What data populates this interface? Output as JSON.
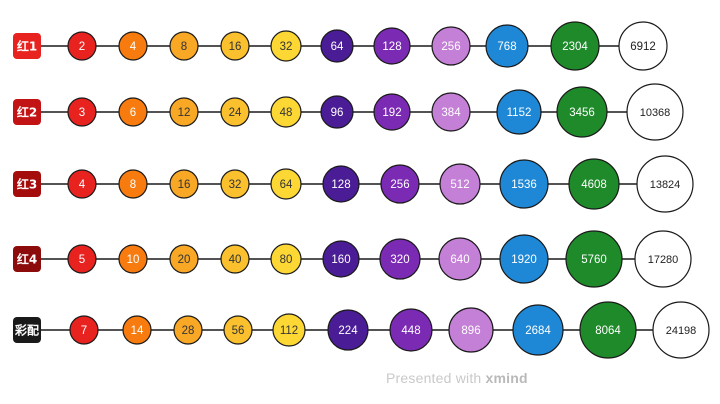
{
  "rows": [
    {
      "label": "红1",
      "label_color": "#e8221f",
      "values": [
        "2",
        "4",
        "8",
        "16",
        "32",
        "64",
        "128",
        "256",
        "768",
        "2304",
        "6912"
      ]
    },
    {
      "label": "红2",
      "label_color": "#c21414",
      "values": [
        "3",
        "6",
        "12",
        "24",
        "48",
        "96",
        "192",
        "384",
        "1152",
        "3456",
        "10368"
      ]
    },
    {
      "label": "红3",
      "label_color": "#a50d0d",
      "values": [
        "4",
        "8",
        "16",
        "32",
        "64",
        "128",
        "256",
        "512",
        "1536",
        "4608",
        "13824"
      ]
    },
    {
      "label": "红4",
      "label_color": "#8c0b0b",
      "values": [
        "5",
        "10",
        "20",
        "40",
        "80",
        "160",
        "320",
        "640",
        "1920",
        "5760",
        "17280"
      ]
    },
    {
      "label": "彩配",
      "label_color": "#1a1a1a",
      "values": [
        "7",
        "14",
        "28",
        "56",
        "112",
        "224",
        "448",
        "896",
        "2684",
        "8064",
        "24198"
      ]
    }
  ],
  "node_colors": [
    "#e8221f",
    "#f77b0e",
    "#f9a825",
    "#fbc02d",
    "#fdd835",
    "#4a1d96",
    "#7b2bb3",
    "#c47fd6",
    "#1e88d6",
    "#1e8a2a",
    "#ffffff"
  ],
  "node_text_colors": [
    "#ffffff",
    "#ffffff",
    "#333333",
    "#333333",
    "#333333",
    "#ffffff",
    "#ffffff",
    "#ffffff",
    "#ffffff",
    "#ffffff",
    "#222222"
  ],
  "watermark": {
    "prefix": "Presented with",
    "brand": "xmind"
  }
}
